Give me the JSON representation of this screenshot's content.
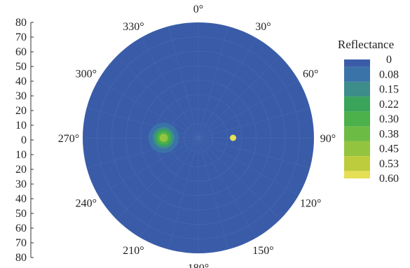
{
  "chart_data": {
    "type": "heatmap",
    "projection": "polar",
    "colorbar": {
      "title": "Reflectance",
      "ticks": [
        "0",
        "0.08",
        "0.15",
        "0.22",
        "0.30",
        "0.38",
        "0.45",
        "0.53",
        "0.60"
      ],
      "colors": [
        "#3a5ca8",
        "#3a73a7",
        "#3d8d8a",
        "#3aa45a",
        "#4cb14a",
        "#6cbb45",
        "#93c43f",
        "#bccc3d",
        "#e5df56"
      ],
      "range": [
        0,
        0.6
      ]
    },
    "angular_axis": {
      "labels": [
        "0°",
        "30°",
        "60°",
        "90°",
        "120°",
        "150°",
        "180°",
        "210°",
        "240°",
        "270°",
        "300°",
        "330°"
      ],
      "direction": "clockwise",
      "zero": "top"
    },
    "radial_axis": {
      "labels": [
        "80",
        "70",
        "60",
        "50",
        "40",
        "30",
        "20",
        "10",
        "0",
        "10",
        "20",
        "30",
        "40",
        "50",
        "60",
        "70",
        "80"
      ],
      "range": [
        0,
        80
      ]
    },
    "background_value": 0.03,
    "features": [
      {
        "name": "specular spot",
        "azimuth_deg": 270,
        "zenith_deg": 24,
        "peak": 0.45,
        "spread_deg": 5
      },
      {
        "name": "small spot",
        "azimuth_deg": 90,
        "zenith_deg": 24,
        "peak": 0.6,
        "spread_deg": 1
      }
    ]
  }
}
